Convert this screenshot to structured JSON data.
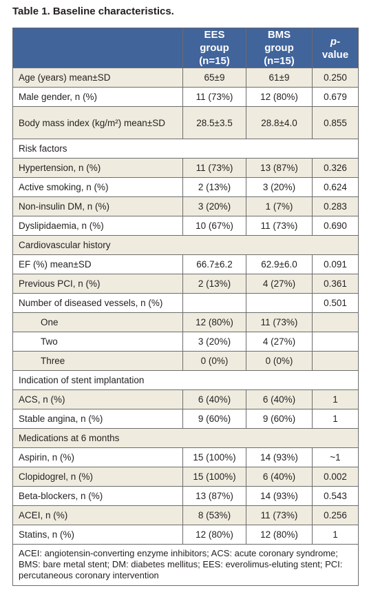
{
  "title": "Table 1. Baseline characteristics.",
  "table": {
    "header": [
      "EES group (n=15)",
      "BMS group (n=15)",
      "p-value"
    ],
    "rows": [
      {
        "label": "Age (years) mean±SD",
        "cells": [
          "65±9",
          "61±9",
          "0.250"
        ]
      },
      {
        "label": "Male gender, n (%)",
        "cells": [
          "11 (73%)",
          "12 (80%)",
          "0.679"
        ]
      },
      {
        "label": "Body mass index (kg/m²) mean±SD",
        "cells": [
          "28.5±3.5",
          "28.8±4.0",
          "0.855"
        ]
      },
      {
        "label": "Risk factors",
        "section": true
      },
      {
        "label": "Hypertension, n (%)",
        "cells": [
          "11 (73%)",
          "13 (87%)",
          "0.326"
        ]
      },
      {
        "label": "Active smoking, n (%)",
        "cells": [
          "2 (13%)",
          "3 (20%)",
          "0.624"
        ]
      },
      {
        "label": "Non-insulin DM, n (%)",
        "cells": [
          "3 (20%)",
          "1 (7%)",
          "0.283"
        ]
      },
      {
        "label": "Dyslipidaemia, n (%)",
        "cells": [
          "10 (67%)",
          "11 (73%)",
          "0.690"
        ]
      },
      {
        "label": "Cardiovascular history",
        "section": true
      },
      {
        "label": "EF (%) mean±SD",
        "cells": [
          "66.7±6.2",
          "62.9±6.0",
          "0.091"
        ]
      },
      {
        "label": "Previous PCI, n (%)",
        "cells": [
          "2 (13%)",
          "4 (27%)",
          "0.361"
        ]
      },
      {
        "label": "Number of diseased vessels, n (%)",
        "cells": [
          null,
          null,
          "0.501"
        ]
      },
      {
        "label": "One",
        "indent": true,
        "cells": [
          "12 (80%)",
          "11 (73%)",
          null
        ]
      },
      {
        "label": "Two",
        "indent": true,
        "cells": [
          "3 (20%)",
          "4 (27%)",
          null
        ]
      },
      {
        "label": "Three",
        "indent": true,
        "cells": [
          "0 (0%)",
          "0 (0%)",
          null
        ]
      },
      {
        "label": "Indication of stent implantation",
        "section": true
      },
      {
        "label": "ACS, n (%)",
        "cells": [
          "6 (40%)",
          "6 (40%)",
          "1"
        ]
      },
      {
        "label": "Stable angina, n (%)",
        "cells": [
          "9 (60%)",
          "9 (60%)",
          "1"
        ]
      },
      {
        "label": "Medications at 6 months",
        "section": true
      },
      {
        "label": "Aspirin, n (%)",
        "cells": [
          "15 (100%)",
          "14 (93%)",
          "~1"
        ]
      },
      {
        "label": "Clopidogrel, n (%)",
        "cells": [
          "15 (100%)",
          "6 (40%)",
          "0.002"
        ]
      },
      {
        "label": "Beta-blockers, n (%)",
        "cells": [
          "13 (87%)",
          "14 (93%)",
          "0.543"
        ]
      },
      {
        "label": "ACEI, n (%)",
        "cells": [
          "8 (53%)",
          "11 (73%)",
          "0.256"
        ]
      },
      {
        "label": "Statins, n (%)",
        "cells": [
          "12 (80%)",
          "12 (80%)",
          "1"
        ]
      }
    ],
    "footnote": "ACEI: angiotensin-converting enzyme inhibitors; ACS: acute coronary syndrome; BMS: bare metal stent; DM: diabetes mellitus; EES: everolimus-eluting stent; PCI: percutaneous coronary intervention"
  }
}
